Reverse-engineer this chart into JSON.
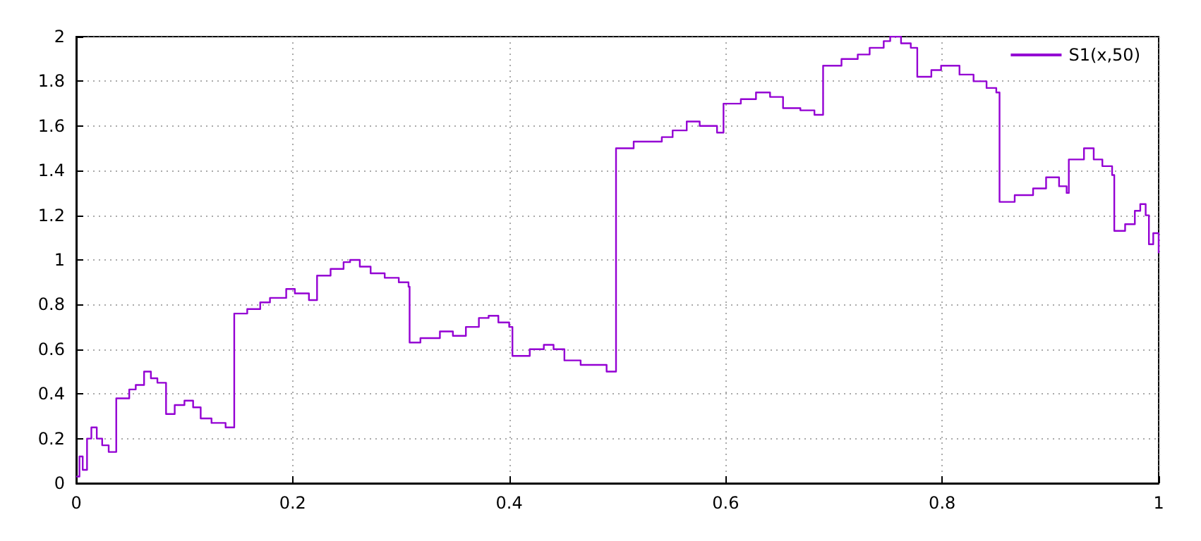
{
  "chart_data": {
    "type": "step",
    "x": [
      0,
      0.003,
      0.006,
      0.01,
      0.014,
      0.019,
      0.024,
      0.03,
      0.037,
      0.049,
      0.055,
      0.0627,
      0.069,
      0.075,
      0.083,
      0.091,
      0.1,
      0.108,
      0.115,
      0.125,
      0.138,
      0.146,
      0.158,
      0.17,
      0.179,
      0.194,
      0.202,
      0.215,
      0.2225,
      0.235,
      0.247,
      0.253,
      0.262,
      0.272,
      0.285,
      0.298,
      0.307,
      0.308,
      0.318,
      0.336,
      0.348,
      0.36,
      0.372,
      0.381,
      0.39,
      0.4,
      0.403,
      0.419,
      0.432,
      0.441,
      0.451,
      0.466,
      0.49,
      0.4987,
      0.515,
      0.541,
      0.551,
      0.564,
      0.576,
      0.592,
      0.598,
      0.614,
      0.628,
      0.641,
      0.653,
      0.669,
      0.682,
      0.69,
      0.707,
      0.722,
      0.733,
      0.746,
      0.752,
      0.762,
      0.771,
      0.777,
      0.79,
      0.799,
      0.816,
      0.829,
      0.841,
      0.85,
      0.853,
      0.867,
      0.884,
      0.896,
      0.908,
      0.915,
      0.917,
      0.931,
      0.94,
      0.948,
      0.957,
      0.959,
      0.969,
      0.978,
      0.983,
      0.988,
      0.991,
      0.995,
      1
    ],
    "series": [
      {
        "name": "S1(x,50)",
        "color": "#9400d3",
        "values": [
          0.03,
          0.12,
          0.06,
          0.2,
          0.25,
          0.2,
          0.17,
          0.14,
          0.38,
          0.42,
          0.44,
          0.5,
          0.47,
          0.45,
          0.31,
          0.35,
          0.37,
          0.34,
          0.29,
          0.27,
          0.25,
          0.76,
          0.78,
          0.81,
          0.83,
          0.87,
          0.85,
          0.82,
          0.93,
          0.96,
          0.99,
          1.0,
          0.97,
          0.94,
          0.92,
          0.9,
          0.88,
          0.63,
          0.65,
          0.68,
          0.66,
          0.7,
          0.74,
          0.75,
          0.72,
          0.7,
          0.57,
          0.6,
          0.62,
          0.6,
          0.55,
          0.53,
          0.5,
          1.5,
          1.53,
          1.55,
          1.58,
          1.62,
          1.6,
          1.57,
          1.7,
          1.72,
          1.75,
          1.73,
          1.68,
          1.67,
          1.65,
          1.87,
          1.9,
          1.92,
          1.95,
          1.98,
          2.0,
          1.97,
          1.95,
          1.82,
          1.85,
          1.87,
          1.83,
          1.8,
          1.77,
          1.75,
          1.26,
          1.29,
          1.32,
          1.37,
          1.33,
          1.3,
          1.45,
          1.5,
          1.45,
          1.42,
          1.38,
          1.13,
          1.16,
          1.22,
          1.25,
          1.2,
          1.07,
          1.12,
          1.03
        ]
      }
    ],
    "xlim": [
      0,
      1
    ],
    "xticks": [
      0,
      0.2,
      0.4,
      0.6,
      0.8,
      1
    ],
    "ylim": [
      0,
      2
    ],
    "yticks": [
      0,
      0.2,
      0.4,
      0.6,
      0.8,
      1,
      1.2,
      1.4,
      1.6,
      1.8,
      2
    ],
    "grid": true,
    "legend": "top right",
    "marker": "none",
    "line_style": "solid"
  }
}
